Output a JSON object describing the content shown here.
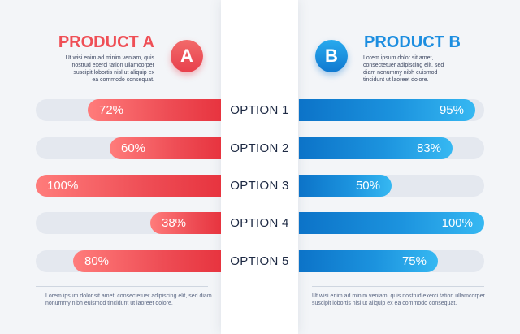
{
  "product_a": {
    "title": "PRODUCT A",
    "badge": "A",
    "description": "Ut wisi enim ad minim veniam, quis\nnostrud exerci tation ullamcorper\nsuscipit lobortis nisl ut aliquip ex\nea commodo consequat.",
    "footer": "Lorem ipsum dolor sit amet, consectetuer adipiscing elit, sed diam\nnonummy nibh euismod tincidunt ut laoreet dolore."
  },
  "product_b": {
    "title": "PRODUCT B",
    "badge": "B",
    "description": "Lorem ipsum dolor sit amet,\nconsectetuer adipiscing elit, sed\ndiam nonummy nibh euismod\ntincidunt ut laoreet dolore.",
    "footer": "Ut wisi enim ad minim veniam, quis nostrud exerci tation ullamcorper\nsuscipit lobortis nisl ut aliquip ex ea commodo consequat."
  },
  "colors": {
    "product_a": "#ee4d55",
    "product_b": "#1c93de",
    "track": "#e4e8ef",
    "center_panel": "#ffffff"
  },
  "chart_data": {
    "type": "bar",
    "orientation": "horizontal-diverging",
    "categories": [
      "OPTION 1",
      "OPTION 2",
      "OPTION 3",
      "OPTION 4",
      "OPTION 5"
    ],
    "series": [
      {
        "name": "PRODUCT A",
        "values": [
          72,
          60,
          100,
          38,
          80
        ],
        "labels": [
          "72%",
          "60%",
          "100%",
          "38%",
          "80%"
        ]
      },
      {
        "name": "PRODUCT B",
        "values": [
          95,
          83,
          50,
          100,
          75
        ],
        "labels": [
          "95%",
          "83%",
          "50%",
          "100%",
          "75%"
        ]
      }
    ],
    "ylim": [
      0,
      100
    ],
    "grid": false,
    "legend": "top"
  }
}
